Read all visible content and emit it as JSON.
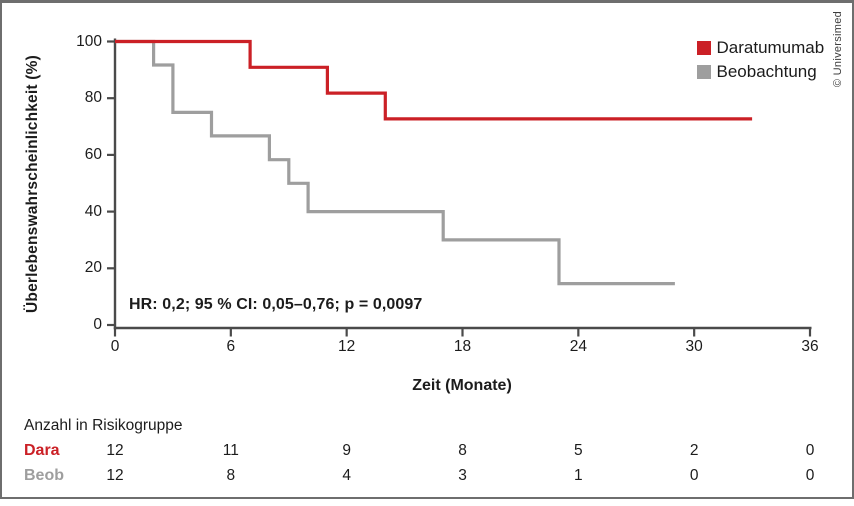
{
  "copyright": "© Universimed",
  "colors": {
    "daratumumab": "#cb2026",
    "beobachtung": "#9e9e9e",
    "axis": "#4a4a4a",
    "text": "#1c1c1c",
    "frame": "#6e6e6e"
  },
  "chart_data": {
    "type": "line",
    "subtype": "kaplan-meier-step",
    "title": "",
    "xlabel": "Zeit (Monate)",
    "ylabel": "Überlebenswahrscheinlichkeit (%)",
    "xlim": [
      0,
      36
    ],
    "ylim": [
      0,
      100
    ],
    "xticks": [
      0,
      6,
      12,
      18,
      24,
      30,
      36
    ],
    "yticks": [
      0,
      20,
      40,
      60,
      80,
      100
    ],
    "grid": false,
    "legend_position": "top-right",
    "annotation": "HR: 0,2; 95 % CI: 0,05–0,76; p = 0,0097",
    "series": [
      {
        "name": "Daratumumab",
        "color": "#cb2026",
        "step_points": [
          [
            0,
            100
          ],
          [
            7,
            100
          ],
          [
            7,
            90.9
          ],
          [
            11,
            90.9
          ],
          [
            11,
            81.8
          ],
          [
            14,
            81.8
          ],
          [
            14,
            72.7
          ],
          [
            33,
            72.7
          ]
        ]
      },
      {
        "name": "Beobachtung",
        "color": "#9e9e9e",
        "step_points": [
          [
            0,
            100
          ],
          [
            2,
            100
          ],
          [
            2,
            91.7
          ],
          [
            3,
            91.7
          ],
          [
            3,
            75
          ],
          [
            5,
            75
          ],
          [
            5,
            66.7
          ],
          [
            8,
            66.7
          ],
          [
            8,
            58.3
          ],
          [
            9,
            58.3
          ],
          [
            9,
            50
          ],
          [
            10,
            50
          ],
          [
            10,
            40
          ],
          [
            17,
            40
          ],
          [
            17,
            30
          ],
          [
            23,
            30
          ],
          [
            23,
            14.6
          ],
          [
            29,
            14.6
          ]
        ]
      }
    ]
  },
  "risk_table": {
    "header": "Anzahl in Risikogruppe",
    "time_points": [
      0,
      6,
      12,
      18,
      24,
      30,
      36
    ],
    "rows": [
      {
        "label": "Dara",
        "color": "#cb2026",
        "values": [
          12,
          11,
          9,
          8,
          5,
          2,
          0
        ]
      },
      {
        "label": "Beob",
        "color": "#9e9e9e",
        "values": [
          12,
          8,
          4,
          3,
          1,
          0,
          0
        ]
      }
    ]
  }
}
